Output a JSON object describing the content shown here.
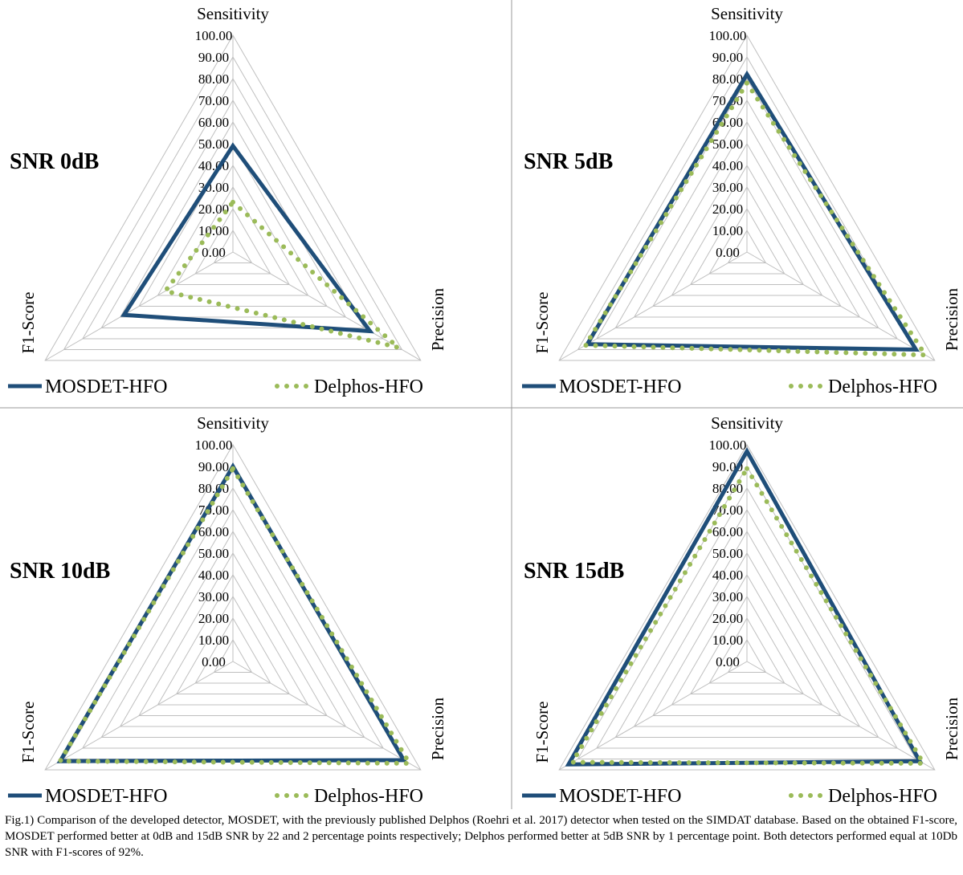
{
  "chart_data": [
    {
      "type": "radar",
      "title": "SNR 0dB",
      "categories": [
        "Sensitivity",
        "Precision",
        "F1-Score"
      ],
      "series": [
        {
          "name": "MOSDET-HFO",
          "color": "#1f4e79",
          "values": [
            49,
            73,
            58
          ]
        },
        {
          "name": "Delphos-HFO",
          "color": "#9bbb59",
          "values": [
            23,
            88,
            36
          ]
        }
      ],
      "rlim": [
        0,
        100
      ],
      "rticks": [
        {
          "value": 0,
          "label": "0.00"
        },
        {
          "value": 10,
          "label": "10.00"
        },
        {
          "value": 20,
          "label": "20.00"
        },
        {
          "value": 30,
          "label": "30.00"
        },
        {
          "value": 40,
          "label": "40.00"
        },
        {
          "value": 50,
          "label": "50.00"
        },
        {
          "value": 60,
          "label": "60.00"
        },
        {
          "value": 70,
          "label": "70.00"
        },
        {
          "value": 80,
          "label": "80.00"
        },
        {
          "value": 90,
          "label": "90.00"
        },
        {
          "value": 100,
          "label": "100.00"
        }
      ],
      "legend": "bottom"
    },
    {
      "type": "radar",
      "title": "SNR 5dB",
      "categories": [
        "Sensitivity",
        "Precision",
        "F1-Score"
      ],
      "series": [
        {
          "name": "MOSDET-HFO",
          "color": "#1f4e79",
          "values": [
            82,
            90,
            85
          ]
        },
        {
          "name": "Delphos-HFO",
          "color": "#9bbb59",
          "values": [
            78,
            95,
            86
          ]
        }
      ],
      "rlim": [
        0,
        100
      ],
      "rticks": [
        {
          "value": 0,
          "label": "0.00"
        },
        {
          "value": 10,
          "label": "10.00"
        },
        {
          "value": 20,
          "label": "20.00"
        },
        {
          "value": 30,
          "label": "30.00"
        },
        {
          "value": 40,
          "label": "40.00"
        },
        {
          "value": 50,
          "label": "50.00"
        },
        {
          "value": 60,
          "label": "60.00"
        },
        {
          "value": 70,
          "label": "70.00"
        },
        {
          "value": 80,
          "label": "80.00"
        },
        {
          "value": 90,
          "label": "90.00"
        },
        {
          "value": 100,
          "label": "100.00"
        }
      ],
      "legend": "bottom"
    },
    {
      "type": "radar",
      "title": "SNR 10dB",
      "categories": [
        "Sensitivity",
        "Precision",
        "F1-Score"
      ],
      "series": [
        {
          "name": "MOSDET-HFO",
          "color": "#1f4e79",
          "values": [
            90,
            91,
            92
          ]
        },
        {
          "name": "Delphos-HFO",
          "color": "#9bbb59",
          "values": [
            89,
            94,
            92
          ]
        }
      ],
      "rlim": [
        0,
        100
      ],
      "rticks": [
        {
          "value": 0,
          "label": "0.00"
        },
        {
          "value": 10,
          "label": "10.00"
        },
        {
          "value": 20,
          "label": "20.00"
        },
        {
          "value": 30,
          "label": "30.00"
        },
        {
          "value": 40,
          "label": "40.00"
        },
        {
          "value": 50,
          "label": "50.00"
        },
        {
          "value": 60,
          "label": "60.00"
        },
        {
          "value": 70,
          "label": "70.00"
        },
        {
          "value": 80,
          "label": "80.00"
        },
        {
          "value": 90,
          "label": "90.00"
        },
        {
          "value": 100,
          "label": "100.00"
        }
      ],
      "legend": "bottom"
    },
    {
      "type": "radar",
      "title": "SNR 15dB",
      "categories": [
        "Sensitivity",
        "Precision",
        "F1-Score"
      ],
      "series": [
        {
          "name": "MOSDET-HFO",
          "color": "#1f4e79",
          "values": [
            97,
            92,
            95
          ]
        },
        {
          "name": "Delphos-HFO",
          "color": "#9bbb59",
          "values": [
            89,
            94,
            93
          ]
        }
      ],
      "rlim": [
        0,
        100
      ],
      "rticks": [
        {
          "value": 0,
          "label": "0.00"
        },
        {
          "value": 10,
          "label": "10.00"
        },
        {
          "value": 20,
          "label": "20.00"
        },
        {
          "value": 30,
          "label": "30.00"
        },
        {
          "value": 40,
          "label": "40.00"
        },
        {
          "value": 50,
          "label": "50.00"
        },
        {
          "value": 60,
          "label": "60.00"
        },
        {
          "value": 70,
          "label": "70.00"
        },
        {
          "value": 80,
          "label": "80.00"
        },
        {
          "value": 90,
          "label": "90.00"
        },
        {
          "value": 100,
          "label": "100.00"
        }
      ],
      "legend": "bottom"
    }
  ],
  "caption": "Fig.1) Comparison of the developed detector, MOSDET, with the previously published Delphos (Roehri et al. 2017) detector when tested on the SIMDAT database. Based on the obtained F1-score, MOSDET performed better at 0dB and 15dB SNR by 22 and 2 percentage points respectively; Delphos performed better at 5dB SNR by 1 percentage point. Both detectors performed equal at 10Db SNR with F1-scores of 92%."
}
